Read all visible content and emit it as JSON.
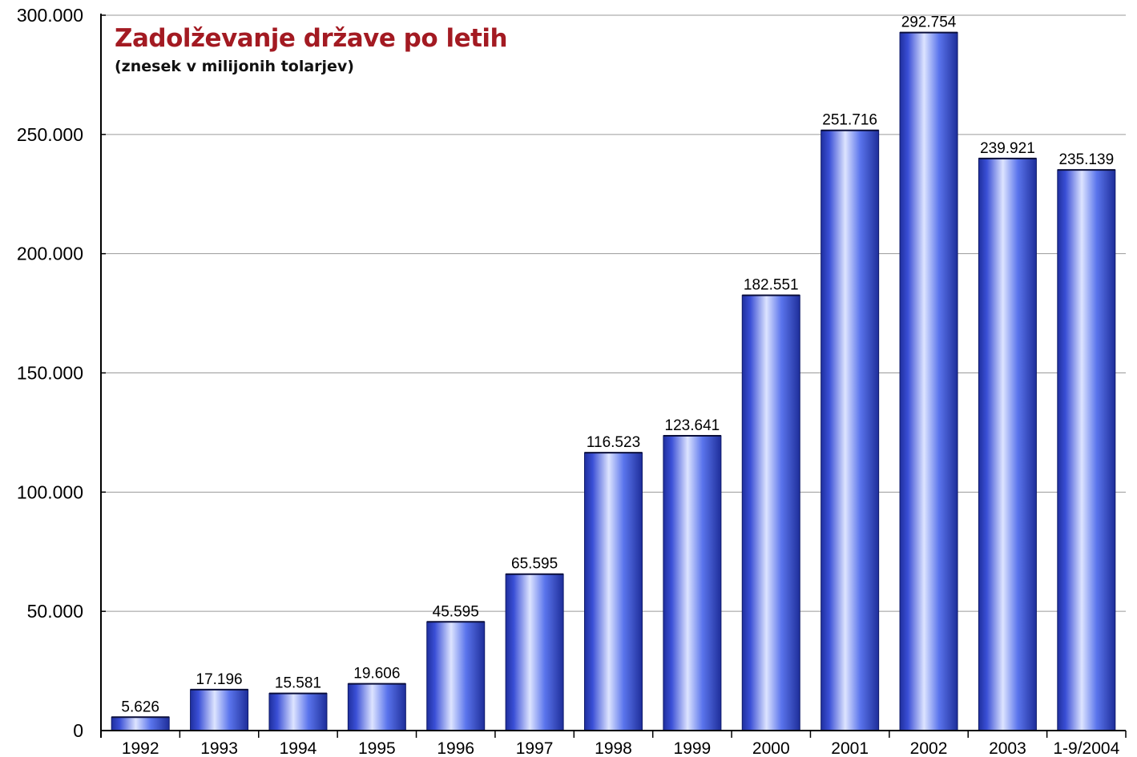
{
  "chart_data": {
    "type": "bar",
    "title": "Zadolževanje države po letih",
    "subtitle": "(znesek v milijonih tolarjev)",
    "categories": [
      "1992",
      "1993",
      "1994",
      "1995",
      "1996",
      "1997",
      "1998",
      "1999",
      "2000",
      "2001",
      "2002",
      "2003",
      "1-9/2004"
    ],
    "values": [
      5626,
      17196,
      15581,
      19606,
      45595,
      65595,
      116523,
      123641,
      182551,
      251716,
      292754,
      239921,
      235139
    ],
    "value_labels": [
      "5.626",
      "17.196",
      "15.581",
      "19.606",
      "45.595",
      "65.595",
      "116.523",
      "123.641",
      "182.551",
      "251.716",
      "292.754",
      "239.921",
      "235.139"
    ],
    "y_ticks": [
      0,
      50000,
      100000,
      150000,
      200000,
      250000,
      300000
    ],
    "y_tick_labels": [
      "0",
      "50.000",
      "100.000",
      "150.000",
      "200.000",
      "250.000",
      "300.000"
    ],
    "ylim": [
      0,
      300000
    ],
    "grid": true,
    "legend": false,
    "colors": {
      "bar_dark": "#1f2f9e",
      "bar_light": "#dde4ff",
      "title": "#a31a22",
      "grid": "#9a9a9a",
      "axis": "#000000"
    }
  }
}
